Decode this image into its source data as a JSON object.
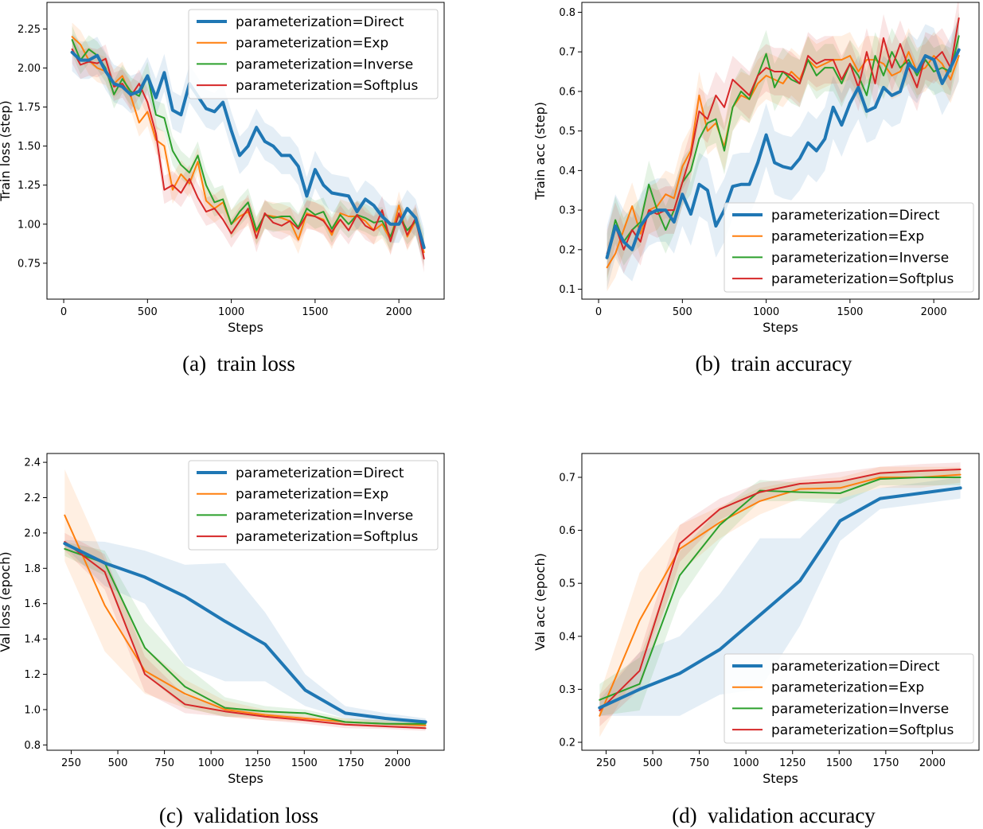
{
  "colors": {
    "Direct": "#1f77b4",
    "Exp": "#ff7f0e",
    "Inverse": "#2ca02c",
    "Softplus": "#d62728"
  },
  "chart_data": [
    {
      "id": "train-loss",
      "type": "line",
      "caption_tag": "(a)",
      "caption": "train loss",
      "xlabel": "Steps",
      "ylabel": "Train loss (step)",
      "xlim": [
        -100,
        2270
      ],
      "ylim": [
        0.52,
        2.42
      ],
      "xticks": [
        0,
        500,
        1000,
        1500,
        2000
      ],
      "yticks": [
        "0.75",
        "1.00",
        "1.25",
        "1.50",
        "1.75",
        "2.00",
        "2.25"
      ],
      "legend_position": "top-right",
      "x": [
        50,
        100,
        150,
        200,
        250,
        300,
        350,
        400,
        450,
        500,
        550,
        600,
        650,
        700,
        750,
        800,
        850,
        900,
        950,
        1000,
        1050,
        1100,
        1150,
        1200,
        1250,
        1300,
        1350,
        1400,
        1450,
        1500,
        1550,
        1600,
        1650,
        1700,
        1750,
        1800,
        1850,
        1900,
        1950,
        2000,
        2050,
        2100,
        2150
      ],
      "series": [
        {
          "name": "parameterization=Direct",
          "key": "Direct",
          "values": [
            2.1,
            2.05,
            2.05,
            2.08,
            1.98,
            1.9,
            1.88,
            1.83,
            1.85,
            1.95,
            1.81,
            1.97,
            1.73,
            1.7,
            1.9,
            1.82,
            1.74,
            1.72,
            1.78,
            1.6,
            1.44,
            1.5,
            1.62,
            1.53,
            1.5,
            1.44,
            1.44,
            1.37,
            1.18,
            1.35,
            1.25,
            1.2,
            1.19,
            1.18,
            1.08,
            1.16,
            1.12,
            1.05,
            1.0,
            1.0,
            1.1,
            1.04,
            0.85
          ],
          "spread": 0.12
        },
        {
          "name": "parameterization=Exp",
          "key": "Exp",
          "values": [
            2.2,
            2.15,
            2.05,
            2.0,
            1.98,
            1.9,
            1.95,
            1.82,
            1.65,
            1.72,
            1.54,
            1.5,
            1.22,
            1.32,
            1.26,
            1.4,
            1.15,
            1.1,
            1.14,
            1.0,
            1.05,
            1.08,
            0.95,
            1.06,
            1.05,
            1.04,
            1.02,
            0.9,
            1.07,
            1.05,
            1.03,
            0.93,
            1.07,
            1.05,
            1.05,
            1.02,
            0.96,
            1.0,
            0.9,
            1.12,
            0.92,
            1.02,
            0.82
          ],
          "spread": 0.09
        },
        {
          "name": "parameterization=Inverse",
          "key": "Inverse",
          "values": [
            2.18,
            2.05,
            2.12,
            2.08,
            2.0,
            1.83,
            1.93,
            1.85,
            1.82,
            1.95,
            1.7,
            1.68,
            1.47,
            1.38,
            1.33,
            1.44,
            1.25,
            1.14,
            1.16,
            1.0,
            1.08,
            1.14,
            0.96,
            1.06,
            1.04,
            1.05,
            1.05,
            0.98,
            1.1,
            1.06,
            1.08,
            0.97,
            1.06,
            1.0,
            1.06,
            1.04,
            1.01,
            1.02,
            0.92,
            1.06,
            0.96,
            1.02,
            0.85
          ],
          "spread": 0.09
        },
        {
          "name": "parameterization=Softplus",
          "key": "Softplus",
          "values": [
            2.12,
            2.02,
            2.04,
            2.03,
            2.06,
            1.88,
            1.9,
            1.82,
            1.9,
            1.78,
            1.58,
            1.22,
            1.25,
            1.2,
            1.29,
            1.17,
            1.08,
            1.1,
            1.03,
            0.94,
            1.02,
            1.1,
            0.91,
            1.07,
            1.01,
            0.99,
            1.02,
            0.97,
            1.06,
            1.05,
            1.02,
            0.95,
            1.03,
            0.96,
            1.06,
            0.99,
            0.96,
            1.09,
            0.89,
            1.07,
            0.93,
            1.04,
            0.78
          ],
          "spread": 0.09
        }
      ]
    },
    {
      "id": "train-accuracy",
      "type": "line",
      "caption_tag": "(b)",
      "caption": "train accuracy",
      "xlabel": "Steps",
      "ylabel": "Train acc (step)",
      "xlim": [
        -100,
        2270
      ],
      "ylim": [
        0.075,
        0.825
      ],
      "xticks": [
        0,
        500,
        1000,
        1500,
        2000
      ],
      "yticks": [
        "0.1",
        "0.2",
        "0.3",
        "0.4",
        "0.5",
        "0.6",
        "0.7",
        "0.8"
      ],
      "legend_position": "lower-right",
      "x": [
        50,
        100,
        150,
        200,
        250,
        300,
        350,
        400,
        450,
        500,
        550,
        600,
        650,
        700,
        750,
        800,
        850,
        900,
        950,
        1000,
        1050,
        1100,
        1150,
        1200,
        1250,
        1300,
        1350,
        1400,
        1450,
        1500,
        1550,
        1600,
        1650,
        1700,
        1750,
        1800,
        1850,
        1900,
        1950,
        2000,
        2050,
        2100,
        2150
      ],
      "series": [
        {
          "name": "parameterization=Direct",
          "key": "Direct",
          "values": [
            0.18,
            0.26,
            0.22,
            0.2,
            0.26,
            0.29,
            0.3,
            0.3,
            0.27,
            0.34,
            0.29,
            0.365,
            0.35,
            0.26,
            0.3,
            0.36,
            0.365,
            0.365,
            0.42,
            0.49,
            0.42,
            0.41,
            0.405,
            0.43,
            0.47,
            0.45,
            0.48,
            0.56,
            0.515,
            0.57,
            0.61,
            0.55,
            0.56,
            0.61,
            0.59,
            0.6,
            0.67,
            0.65,
            0.69,
            0.68,
            0.62,
            0.66,
            0.705
          ],
          "spread": 0.08
        },
        {
          "name": "parameterization=Exp",
          "key": "Exp",
          "values": [
            0.155,
            0.19,
            0.25,
            0.31,
            0.24,
            0.3,
            0.31,
            0.34,
            0.33,
            0.41,
            0.45,
            0.59,
            0.5,
            0.52,
            0.46,
            0.56,
            0.59,
            0.58,
            0.62,
            0.64,
            0.63,
            0.62,
            0.65,
            0.63,
            0.68,
            0.66,
            0.67,
            0.68,
            0.68,
            0.69,
            0.65,
            0.68,
            0.68,
            0.67,
            0.64,
            0.65,
            0.7,
            0.65,
            0.66,
            0.69,
            0.67,
            0.63,
            0.69
          ],
          "spread": 0.06
        },
        {
          "name": "parameterization=Inverse",
          "key": "Inverse",
          "values": [
            0.18,
            0.275,
            0.22,
            0.25,
            0.27,
            0.365,
            0.3,
            0.25,
            0.3,
            0.37,
            0.4,
            0.48,
            0.52,
            0.53,
            0.45,
            0.56,
            0.6,
            0.58,
            0.64,
            0.695,
            0.61,
            0.65,
            0.63,
            0.62,
            0.68,
            0.64,
            0.66,
            0.66,
            0.62,
            0.67,
            0.64,
            0.59,
            0.69,
            0.64,
            0.7,
            0.66,
            0.68,
            0.64,
            0.68,
            0.65,
            0.66,
            0.65,
            0.74
          ],
          "spread": 0.06
        },
        {
          "name": "parameterization=Softplus",
          "key": "Softplus",
          "values": [
            0.19,
            0.26,
            0.2,
            0.25,
            0.22,
            0.3,
            0.29,
            0.3,
            0.3,
            0.37,
            0.44,
            0.55,
            0.53,
            0.59,
            0.56,
            0.63,
            0.61,
            0.59,
            0.64,
            0.66,
            0.65,
            0.65,
            0.64,
            0.62,
            0.69,
            0.67,
            0.68,
            0.68,
            0.63,
            0.67,
            0.61,
            0.7,
            0.62,
            0.735,
            0.66,
            0.72,
            0.66,
            0.61,
            0.69,
            0.68,
            0.7,
            0.66,
            0.785
          ],
          "spread": 0.06
        }
      ]
    },
    {
      "id": "validation-loss",
      "type": "line",
      "caption_tag": "(c)",
      "caption": "validation loss",
      "xlabel": "Steps",
      "ylabel": "Val loss (epoch)",
      "xlim": [
        120,
        2250
      ],
      "ylim": [
        0.77,
        2.45
      ],
      "xticks": [
        250,
        500,
        750,
        1000,
        1250,
        1500,
        1750,
        2000
      ],
      "yticks": [
        "0.8",
        "1.0",
        "1.2",
        "1.4",
        "1.6",
        "1.8",
        "2.0",
        "2.2",
        "2.4"
      ],
      "legend_position": "top-right",
      "x": [
        215,
        430,
        645,
        860,
        1075,
        1290,
        1505,
        1720,
        1935,
        2150
      ],
      "series": [
        {
          "name": "parameterization=Direct",
          "key": "Direct",
          "values": [
            1.94,
            1.83,
            1.75,
            1.64,
            1.5,
            1.37,
            1.11,
            0.98,
            0.95,
            0.93
          ],
          "upper": [
            1.96,
            1.95,
            1.9,
            1.82,
            1.83,
            1.55,
            1.2,
            1.02,
            0.98,
            0.95
          ],
          "lower": [
            1.92,
            1.7,
            1.6,
            1.25,
            1.16,
            1.16,
            1.02,
            0.95,
            0.92,
            0.91
          ]
        },
        {
          "name": "parameterization=Exp",
          "key": "Exp",
          "values": [
            2.1,
            1.59,
            1.22,
            1.09,
            1.0,
            0.97,
            0.95,
            0.93,
            0.92,
            0.91
          ],
          "upper": [
            2.36,
            1.85,
            1.35,
            1.17,
            1.05,
            1.0,
            0.97,
            0.95,
            0.94,
            0.93
          ],
          "lower": [
            1.84,
            1.33,
            1.09,
            1.01,
            0.96,
            0.94,
            0.93,
            0.91,
            0.9,
            0.89
          ]
        },
        {
          "name": "parameterization=Inverse",
          "key": "Inverse",
          "values": [
            1.91,
            1.83,
            1.35,
            1.13,
            1.01,
            0.99,
            0.98,
            0.93,
            0.92,
            0.92
          ],
          "upper": [
            1.95,
            1.9,
            1.5,
            1.25,
            1.07,
            1.02,
            1.0,
            0.95,
            0.94,
            0.94
          ],
          "lower": [
            1.87,
            1.76,
            1.2,
            1.01,
            0.96,
            0.96,
            0.96,
            0.91,
            0.9,
            0.9
          ]
        },
        {
          "name": "parameterization=Softplus",
          "key": "Softplus",
          "values": [
            1.95,
            1.78,
            1.2,
            1.03,
            0.99,
            0.96,
            0.94,
            0.915,
            0.905,
            0.895
          ],
          "upper": [
            2.0,
            1.88,
            1.3,
            1.08,
            1.02,
            0.98,
            0.96,
            0.935,
            0.92,
            0.91
          ],
          "lower": [
            1.9,
            1.68,
            1.1,
            0.98,
            0.96,
            0.94,
            0.92,
            0.895,
            0.89,
            0.88
          ]
        }
      ]
    },
    {
      "id": "validation-accuracy",
      "type": "line",
      "caption_tag": "(d)",
      "caption": "validation accuracy",
      "xlabel": "Steps",
      "ylabel": "Val acc (epoch)",
      "xlim": [
        120,
        2250
      ],
      "ylim": [
        0.185,
        0.745
      ],
      "xticks": [
        250,
        500,
        750,
        1000,
        1250,
        1500,
        1750,
        2000
      ],
      "yticks": [
        "0.2",
        "0.3",
        "0.4",
        "0.5",
        "0.6",
        "0.7"
      ],
      "legend_position": "lower-right",
      "x": [
        215,
        430,
        645,
        860,
        1075,
        1290,
        1505,
        1720,
        1935,
        2150
      ],
      "series": [
        {
          "name": "parameterization=Direct",
          "key": "Direct",
          "values": [
            0.265,
            0.3,
            0.33,
            0.375,
            0.44,
            0.505,
            0.618,
            0.66,
            0.67,
            0.68
          ],
          "upper": [
            0.28,
            0.37,
            0.4,
            0.48,
            0.585,
            0.585,
            0.66,
            0.68,
            0.69,
            0.7
          ],
          "lower": [
            0.25,
            0.25,
            0.25,
            0.29,
            0.3,
            0.42,
            0.58,
            0.64,
            0.65,
            0.66
          ]
        },
        {
          "name": "parameterization=Exp",
          "key": "Exp",
          "values": [
            0.25,
            0.43,
            0.565,
            0.615,
            0.655,
            0.678,
            0.68,
            0.7,
            0.7,
            0.705
          ],
          "upper": [
            0.29,
            0.52,
            0.61,
            0.645,
            0.68,
            0.695,
            0.7,
            0.72,
            0.72,
            0.72
          ],
          "lower": [
            0.21,
            0.34,
            0.52,
            0.585,
            0.63,
            0.66,
            0.66,
            0.68,
            0.68,
            0.69
          ]
        },
        {
          "name": "parameterization=Inverse",
          "key": "Inverse",
          "values": [
            0.28,
            0.31,
            0.515,
            0.61,
            0.675,
            0.672,
            0.67,
            0.697,
            0.7,
            0.7
          ],
          "upper": [
            0.31,
            0.36,
            0.56,
            0.64,
            0.695,
            0.69,
            0.69,
            0.71,
            0.715,
            0.715
          ],
          "lower": [
            0.25,
            0.26,
            0.47,
            0.58,
            0.655,
            0.655,
            0.65,
            0.685,
            0.685,
            0.685
          ]
        },
        {
          "name": "parameterization=Softplus",
          "key": "Softplus",
          "values": [
            0.26,
            0.335,
            0.575,
            0.64,
            0.672,
            0.688,
            0.692,
            0.708,
            0.712,
            0.715
          ],
          "upper": [
            0.29,
            0.37,
            0.61,
            0.66,
            0.69,
            0.7,
            0.71,
            0.72,
            0.725,
            0.728
          ],
          "lower": [
            0.23,
            0.3,
            0.54,
            0.62,
            0.655,
            0.675,
            0.675,
            0.695,
            0.7,
            0.7
          ]
        }
      ]
    }
  ]
}
